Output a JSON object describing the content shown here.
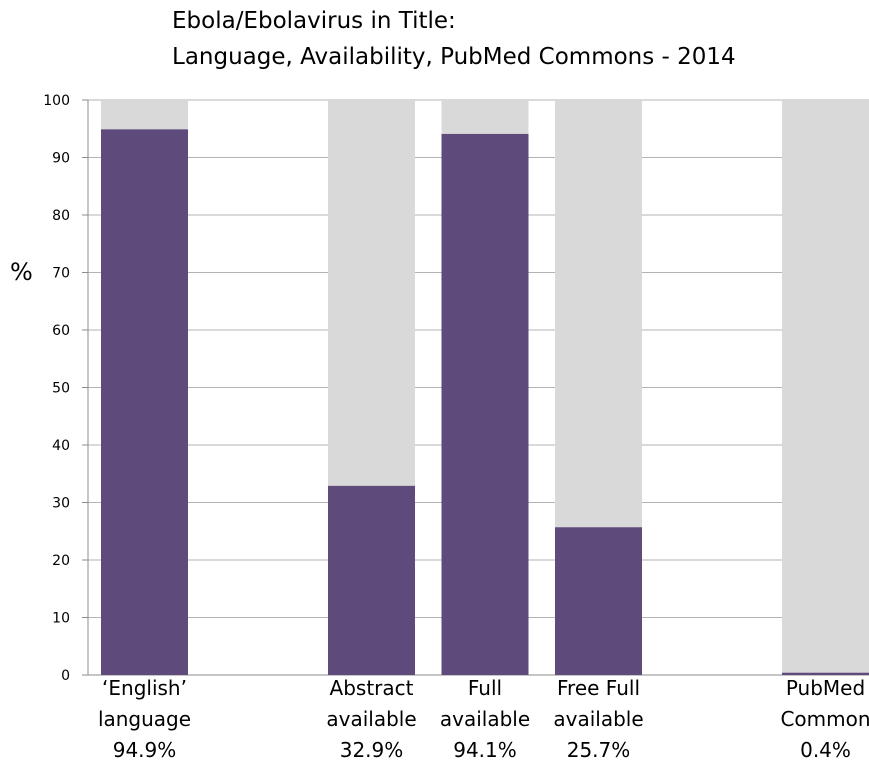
{
  "chart_data": {
    "type": "bar",
    "title": [
      "Ebola/Ebolavirus in Title:",
      "Language, Availability, PubMed Commons - 2014"
    ],
    "ylabel": "%",
    "xlabel": "",
    "ylim": [
      0,
      100
    ],
    "yticks": [
      0,
      10,
      20,
      30,
      40,
      50,
      60,
      70,
      80,
      90,
      100
    ],
    "grid": true,
    "stacked_background_to": 100,
    "categories": [
      {
        "lines": [
          "‘English’",
          "language",
          "94.9%"
        ],
        "value": 94.9,
        "slot": 0
      },
      {
        "lines": [
          "Abstract",
          "available",
          "32.9%"
        ],
        "value": 32.9,
        "slot": 2
      },
      {
        "lines": [
          "Full",
          "available",
          "94.1%"
        ],
        "value": 94.1,
        "slot": 3
      },
      {
        "lines": [
          "Free Full",
          "available",
          "25.7%"
        ],
        "value": 25.7,
        "slot": 4
      },
      {
        "lines": [
          "PubMed",
          "Common",
          "0.4%"
        ],
        "value": 0.4,
        "slot": 6
      }
    ],
    "colors": {
      "bar": "#5e4a7b",
      "remainder": "#d9d9d9",
      "grid": "#b3b3b3",
      "axis": "#8c8c8c"
    }
  }
}
